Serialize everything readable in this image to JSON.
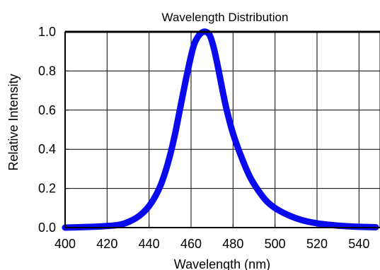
{
  "chart_data": {
    "type": "line",
    "title": "Wavelength Distribution",
    "xlabel": "Wavelength (nm)",
    "ylabel": "Relative Intensity",
    "xlim": [
      400,
      550
    ],
    "ylim": [
      0,
      1.0
    ],
    "xticks": [
      400,
      420,
      440,
      460,
      480,
      500,
      520,
      540
    ],
    "yticks": [
      0.0,
      0.2,
      0.4,
      0.6,
      0.8,
      1.0
    ],
    "xtick_labels": [
      "400",
      "420",
      "440",
      "460",
      "480",
      "500",
      "520",
      "540"
    ],
    "ytick_labels": [
      "0.0",
      "0.2",
      "0.4",
      "0.6",
      "0.8",
      "1.0"
    ],
    "grid": true,
    "series": [
      {
        "color": "#0a0aee",
        "x": [
          400,
          410,
          415,
          420,
          425,
          428,
          431,
          434,
          437,
          440,
          443,
          446,
          449,
          452,
          455,
          458,
          461,
          463,
          465,
          467,
          469,
          471,
          473,
          475,
          477,
          480,
          484,
          488,
          492,
          496,
          500,
          505,
          510,
          515,
          520,
          525,
          530,
          540,
          548
        ],
        "y": [
          0.0,
          0.003,
          0.005,
          0.008,
          0.013,
          0.02,
          0.033,
          0.05,
          0.075,
          0.11,
          0.16,
          0.23,
          0.33,
          0.46,
          0.62,
          0.78,
          0.92,
          0.97,
          0.995,
          1.0,
          0.98,
          0.91,
          0.81,
          0.7,
          0.6,
          0.48,
          0.36,
          0.26,
          0.19,
          0.135,
          0.1,
          0.07,
          0.048,
          0.032,
          0.022,
          0.015,
          0.01,
          0.004,
          0.002
        ]
      }
    ]
  }
}
